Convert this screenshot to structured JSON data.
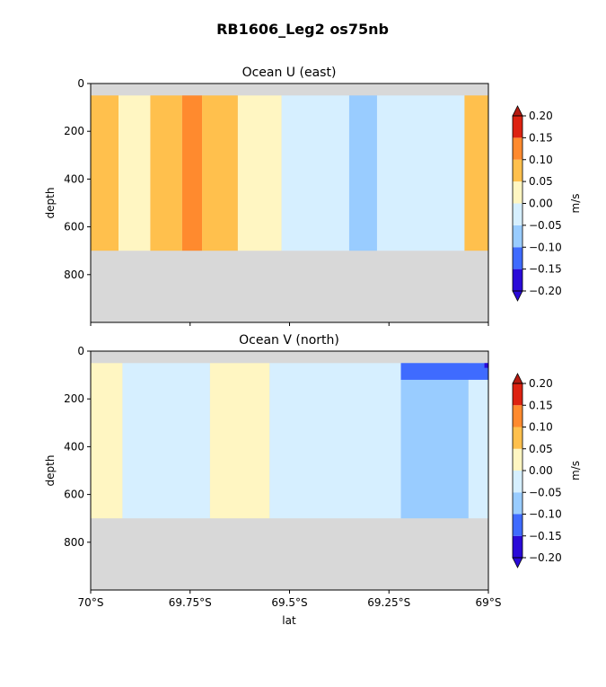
{
  "figure": {
    "suptitle": "RB1606_Leg2 os75nb"
  },
  "colormap": {
    "levels": [
      -0.2,
      -0.15,
      -0.1,
      -0.05,
      0.0,
      0.05,
      0.1,
      0.15,
      0.2
    ],
    "tick_labels": [
      "−0.20",
      "−0.15",
      "−0.10",
      "−0.05",
      "0.00",
      "0.05",
      "0.10",
      "0.15",
      "0.20"
    ],
    "band_colors": [
      "#2a0ad8",
      "#3f6bff",
      "#99ccff",
      "#d6efff",
      "#fff6c2",
      "#ffc04d",
      "#ff8a2e",
      "#dd2211"
    ],
    "under_color": "#2a0ad8",
    "over_color": "#b51a10",
    "nodata_color": "#d8d8d8",
    "unit_label": "m/s"
  },
  "chart_data": [
    {
      "type": "heatmap",
      "title": "Ocean U (east)",
      "ylabel": "depth",
      "xlabel": "",
      "xlim": [
        -70.0,
        -69.0
      ],
      "ylim": [
        1000,
        0
      ],
      "yticks": [
        0,
        200,
        400,
        600,
        800
      ],
      "valid_depth_range": [
        50,
        700
      ],
      "bands": [
        {
          "lat_from": -70.0,
          "lat_to": -69.93,
          "value": 0.07
        },
        {
          "lat_from": -69.93,
          "lat_to": -69.85,
          "value": 0.03
        },
        {
          "lat_from": -69.85,
          "lat_to": -69.77,
          "value": 0.08
        },
        {
          "lat_from": -69.77,
          "lat_to": -69.72,
          "value": 0.12
        },
        {
          "lat_from": -69.72,
          "lat_to": -69.63,
          "value": 0.07
        },
        {
          "lat_from": -69.63,
          "lat_to": -69.52,
          "value": 0.03
        },
        {
          "lat_from": -69.52,
          "lat_to": -69.35,
          "value": -0.02
        },
        {
          "lat_from": -69.35,
          "lat_to": -69.28,
          "value": -0.06
        },
        {
          "lat_from": -69.28,
          "lat_to": -69.06,
          "value": -0.02
        },
        {
          "lat_from": -69.06,
          "lat_to": -69.0,
          "value": 0.06
        }
      ]
    },
    {
      "type": "heatmap",
      "title": "Ocean V (north)",
      "ylabel": "depth",
      "xlabel": "lat",
      "xlim": [
        -70.0,
        -69.0
      ],
      "ylim": [
        1000,
        0
      ],
      "yticks": [
        0,
        200,
        400,
        600,
        800
      ],
      "xticks": [
        -70.0,
        -69.75,
        -69.5,
        -69.25,
        -69.0
      ],
      "xtick_labels": [
        "70°S",
        "69.75°S",
        "69.5°S",
        "69.25°S",
        "69°S"
      ],
      "valid_depth_range": [
        50,
        700
      ],
      "bands": [
        {
          "lat_from": -70.0,
          "lat_to": -69.92,
          "value": 0.03
        },
        {
          "lat_from": -69.92,
          "lat_to": -69.7,
          "value": -0.02
        },
        {
          "lat_from": -69.7,
          "lat_to": -69.55,
          "value": 0.02
        },
        {
          "lat_from": -69.55,
          "lat_to": -69.22,
          "value": -0.02
        },
        {
          "lat_from": -69.22,
          "lat_to": -69.05,
          "value": -0.07
        },
        {
          "lat_from": -69.05,
          "lat_to": -69.0,
          "value": -0.03
        }
      ],
      "patches": [
        {
          "lat_from": -69.22,
          "lat_to": -69.0,
          "depth_from": 50,
          "depth_to": 120,
          "value": -0.12
        },
        {
          "lat_from": -69.01,
          "lat_to": -69.0,
          "depth_from": 50,
          "depth_to": 70,
          "value": -0.22
        }
      ]
    }
  ]
}
